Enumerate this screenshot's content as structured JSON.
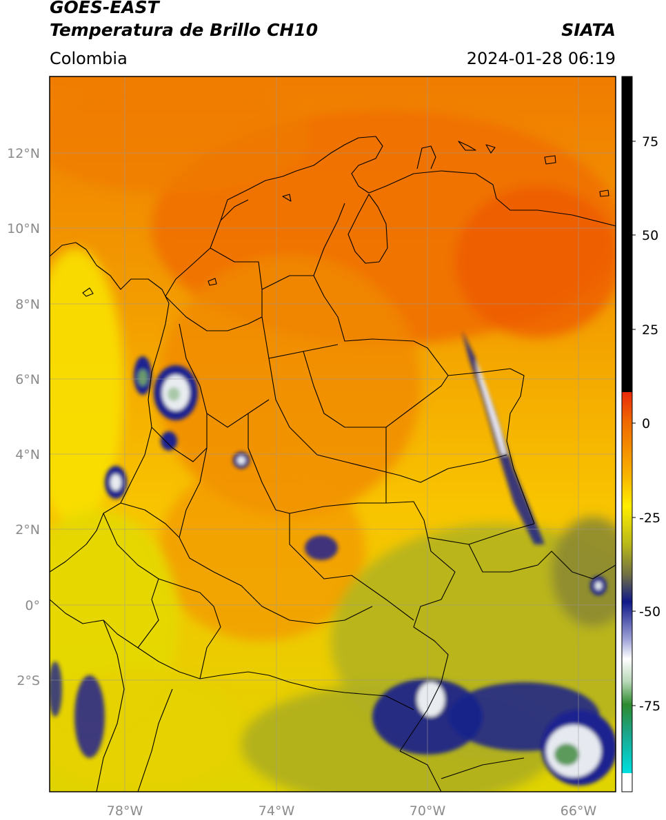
{
  "header": {
    "satellite": "GOES-EAST",
    "product": "Temperatura de Brillo CH10",
    "organization": "SIATA",
    "region": "Colombia",
    "datetime": "2024-01-28 06:19"
  },
  "map": {
    "extent": {
      "lon": [
        -80,
        -65
      ],
      "lat": [
        -5,
        14
      ]
    },
    "lon_ticks": [
      "78°W",
      "74°W",
      "70°W",
      "66°W"
    ],
    "lat_ticks": [
      "12°N",
      "10°N",
      "8°N",
      "6°N",
      "4°N",
      "2°N",
      "0°",
      "2°S"
    ],
    "gridlines": true
  },
  "colorbar": {
    "ticks": [
      "75",
      "50",
      "25",
      "0",
      "-25",
      "-50",
      "-75"
    ],
    "range": [
      -97,
      90
    ],
    "colors": {
      "hot": "#000000",
      "red": "#e82a0a",
      "orange": "#f07a00",
      "yellow": "#ffee00",
      "olive": "#8f8f1a",
      "navy": "#101888",
      "white": "#ffffff",
      "green": "#2e8a2e",
      "cyan": "#00e0e0"
    }
  }
}
